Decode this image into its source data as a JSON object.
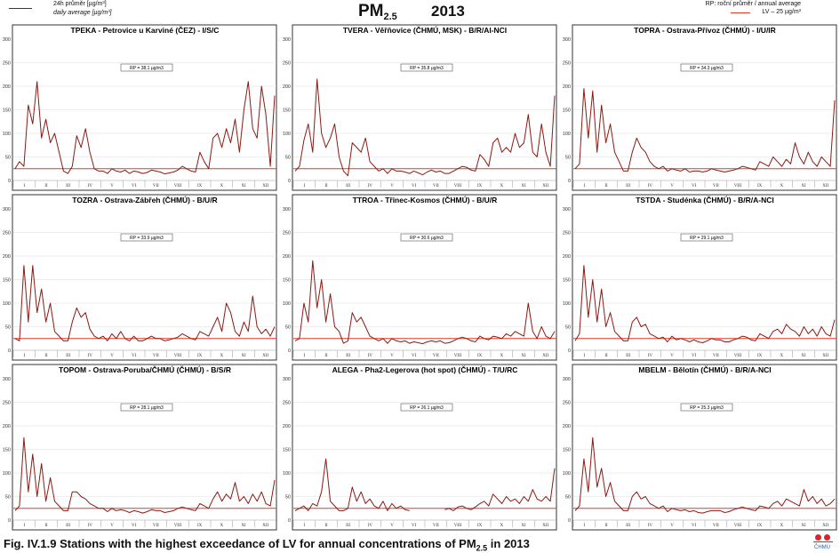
{
  "legend_left": {
    "line1": "24h průměr [µg/m³]",
    "line2": "daily average [µg/m³]",
    "line_color": "#8b1a12"
  },
  "main_title": {
    "pm": "PM",
    "pm_sub": "2.5",
    "year": "2013"
  },
  "legend_right": {
    "line1": "RP: roční průměr / annual average",
    "line2": "LV – 25 µg/m³",
    "lv_color": "#e03a2a"
  },
  "caption": {
    "prefix": "Fig. IV.1.9  Stations with the highest exceedance of LV for annual concentrations of PM",
    "sub": "2.5",
    "suffix": " in 2013"
  },
  "logo": {
    "text": "ČHMÚ"
  },
  "chart_data": [
    {
      "type": "line",
      "title": "TPEKA - Petrovice u Karviné (ČEZ) - I/S/C",
      "annotation": "RP = 38.1 µg/m3",
      "ylim": [
        0,
        300
      ],
      "yticks": [
        0,
        50,
        100,
        150,
        200,
        250,
        300
      ],
      "xticks": [
        "I",
        "II",
        "III",
        "IV",
        "V",
        "VI",
        "VII",
        "VIII",
        "IX",
        "X",
        "XI",
        "XII"
      ],
      "limit_value": 25,
      "series": [
        {
          "values": [
            25,
            40,
            30,
            160,
            120,
            210,
            90,
            130,
            80,
            100,
            60,
            20,
            15,
            30,
            95,
            70,
            110,
            60,
            25,
            20,
            20,
            15,
            25,
            20,
            18,
            22,
            15,
            20,
            18,
            15,
            17,
            22,
            20,
            18,
            14,
            16,
            18,
            22,
            30,
            25,
            20,
            18,
            60,
            40,
            25,
            90,
            100,
            70,
            110,
            80,
            130,
            60,
            150,
            210,
            110,
            90,
            200,
            140,
            30,
            180
          ]
        }
      ]
    },
    {
      "type": "line",
      "title": "TVERA - Věřňovice (ČHMÚ, MSK) - B/R/AI-NCI",
      "annotation": "RP = 35.8 µg/m3",
      "ylim": [
        0,
        300
      ],
      "yticks": [
        0,
        50,
        100,
        150,
        200,
        250,
        300
      ],
      "xticks": [
        "I",
        "II",
        "III",
        "IV",
        "V",
        "VI",
        "VII",
        "VIII",
        "IX",
        "X",
        "XI",
        "XII"
      ],
      "limit_value": 25,
      "series": [
        {
          "values": [
            20,
            30,
            85,
            120,
            60,
            215,
            100,
            70,
            90,
            120,
            50,
            20,
            10,
            80,
            70,
            60,
            90,
            40,
            30,
            20,
            25,
            15,
            25,
            20,
            20,
            18,
            15,
            20,
            16,
            12,
            18,
            22,
            18,
            20,
            15,
            15,
            20,
            25,
            30,
            28,
            22,
            20,
            55,
            45,
            30,
            80,
            90,
            60,
            70,
            60,
            100,
            70,
            80,
            140,
            60,
            50,
            120,
            60,
            30,
            180
          ]
        }
      ]
    },
    {
      "type": "line",
      "title": "TOPRA - Ostrava-Přívoz (ČHMÚ) - I/U/IR",
      "annotation": "RP = 34.3 µg/m3",
      "ylim": [
        0,
        300
      ],
      "yticks": [
        0,
        50,
        100,
        150,
        200,
        250,
        300
      ],
      "xticks": [
        "I",
        "II",
        "III",
        "IV",
        "V",
        "VI",
        "VII",
        "VIII",
        "IX",
        "X",
        "XI",
        "XII"
      ],
      "limit_value": 25,
      "series": [
        {
          "values": [
            25,
            35,
            195,
            90,
            190,
            60,
            160,
            80,
            120,
            60,
            40,
            20,
            20,
            60,
            90,
            70,
            60,
            40,
            30,
            25,
            30,
            20,
            25,
            22,
            20,
            25,
            18,
            20,
            20,
            18,
            20,
            25,
            22,
            20,
            18,
            20,
            22,
            25,
            30,
            28,
            25,
            22,
            40,
            35,
            30,
            50,
            40,
            30,
            45,
            35,
            80,
            50,
            35,
            60,
            40,
            30,
            50,
            40,
            30,
            170
          ]
        }
      ]
    },
    {
      "type": "line",
      "title": "TOZRA - Ostrava-Zábřeh (ČHMÚ) - B/U/R",
      "annotation": "RP = 33.9 µg/m3",
      "ylim": [
        0,
        300
      ],
      "yticks": [
        0,
        50,
        100,
        150,
        200,
        250,
        300
      ],
      "xticks": [
        "I",
        "II",
        "III",
        "IV",
        "V",
        "VI",
        "VII",
        "VIII",
        "IX",
        "X",
        "XI",
        "XII"
      ],
      "limit_value": 25,
      "series": [
        {
          "values": [
            25,
            20,
            180,
            60,
            180,
            80,
            130,
            60,
            100,
            40,
            30,
            20,
            20,
            60,
            90,
            70,
            80,
            45,
            30,
            25,
            30,
            20,
            35,
            25,
            40,
            25,
            20,
            30,
            20,
            20,
            25,
            30,
            25,
            25,
            20,
            22,
            25,
            28,
            35,
            30,
            25,
            22,
            40,
            35,
            30,
            50,
            70,
            40,
            100,
            80,
            40,
            30,
            60,
            40,
            115,
            50,
            35,
            45,
            30,
            50
          ]
        }
      ]
    },
    {
      "type": "line",
      "title": "TTROA - Třinec-Kosmos (ČHMÚ) - B/U/R",
      "annotation": "RP = 30.6 µg/m3",
      "ylim": [
        0,
        300
      ],
      "yticks": [
        0,
        50,
        100,
        150,
        200,
        250,
        300
      ],
      "xticks": [
        "I",
        "II",
        "III",
        "IV",
        "V",
        "VI",
        "VII",
        "VIII",
        "IX",
        "X",
        "XI",
        "XII"
      ],
      "limit_value": 25,
      "series": [
        {
          "values": [
            20,
            25,
            100,
            60,
            190,
            90,
            150,
            60,
            120,
            50,
            40,
            15,
            20,
            80,
            60,
            70,
            50,
            30,
            25,
            20,
            25,
            15,
            25,
            20,
            18,
            20,
            15,
            18,
            16,
            14,
            18,
            20,
            18,
            20,
            15,
            16,
            20,
            25,
            28,
            25,
            20,
            18,
            30,
            25,
            22,
            30,
            28,
            25,
            35,
            30,
            40,
            35,
            30,
            100,
            40,
            25,
            50,
            30,
            25,
            40
          ]
        }
      ]
    },
    {
      "type": "line",
      "title": "TSTDA - Studénka (ČHMÚ) - B/R/A-NCI",
      "annotation": "RP = 29.1 µg/m3",
      "ylim": [
        0,
        300
      ],
      "yticks": [
        0,
        50,
        100,
        150,
        200,
        250,
        300
      ],
      "xticks": [
        "I",
        "II",
        "III",
        "IV",
        "V",
        "VI",
        "VII",
        "VIII",
        "IX",
        "X",
        "XI",
        "XII"
      ],
      "limit_value": 25,
      "series": [
        {
          "values": [
            20,
            35,
            180,
            70,
            150,
            60,
            130,
            50,
            80,
            40,
            30,
            20,
            20,
            60,
            70,
            50,
            55,
            35,
            30,
            25,
            28,
            18,
            30,
            22,
            25,
            22,
            18,
            22,
            18,
            16,
            20,
            25,
            22,
            22,
            18,
            18,
            22,
            25,
            30,
            28,
            22,
            20,
            35,
            30,
            25,
            40,
            45,
            35,
            55,
            45,
            40,
            30,
            50,
            35,
            45,
            30,
            50,
            35,
            30,
            65
          ]
        }
      ]
    },
    {
      "type": "line",
      "title": "TOPOM - Ostrava-Poruba/ČHMÚ (ČHMÚ) - B/S/R",
      "annotation": "RP = 28.1 µg/m3",
      "ylim": [
        0,
        300
      ],
      "yticks": [
        0,
        50,
        100,
        150,
        200,
        250,
        300
      ],
      "xticks": [
        "I",
        "II",
        "III",
        "IV",
        "V",
        "VI",
        "VII",
        "VIII",
        "IX",
        "X",
        "XI",
        "XII"
      ],
      "limit_value": 25,
      "series": [
        {
          "values": [
            20,
            30,
            175,
            60,
            140,
            50,
            120,
            40,
            90,
            40,
            30,
            20,
            20,
            60,
            60,
            50,
            45,
            35,
            30,
            25,
            25,
            18,
            25,
            20,
            22,
            20,
            16,
            20,
            18,
            15,
            18,
            22,
            20,
            20,
            16,
            18,
            20,
            25,
            28,
            25,
            22,
            20,
            35,
            30,
            25,
            45,
            60,
            40,
            55,
            45,
            80,
            40,
            50,
            35,
            55,
            40,
            60,
            35,
            30,
            85
          ]
        }
      ]
    },
    {
      "type": "line",
      "title": "ALEGA - Pha2-Legerova (hot spot) (ČHMÚ) - T/U/RC",
      "annotation": "RP = 26.1 µg/m3",
      "ylim": [
        0,
        300
      ],
      "yticks": [
        0,
        50,
        100,
        150,
        200,
        250,
        300
      ],
      "xticks": [
        "I",
        "II",
        "III",
        "IV",
        "V",
        "VI",
        "VII",
        "VIII",
        "IX",
        "X",
        "XI",
        "XII"
      ],
      "limit_value": 25,
      "series": [
        {
          "values": [
            20,
            25,
            30,
            20,
            35,
            30,
            60,
            130,
            40,
            30,
            20,
            20,
            25,
            70,
            40,
            60,
            35,
            45,
            30,
            25,
            40,
            20,
            35,
            25,
            30,
            22,
            20,
            null,
            null,
            25,
            null,
            null,
            null,
            null,
            22,
            25,
            20,
            28,
            30,
            25,
            22,
            28,
            35,
            40,
            30,
            55,
            45,
            35,
            50,
            40,
            45,
            35,
            50,
            40,
            65,
            45,
            40,
            50,
            40,
            110
          ]
        }
      ]
    },
    {
      "type": "line",
      "title": "MBELM - Bělotín (ČHMÚ) - B/R/A-NCI",
      "annotation": "RP = 25.3 µg/m3",
      "ylim": [
        0,
        300
      ],
      "yticks": [
        0,
        50,
        100,
        150,
        200,
        250,
        300
      ],
      "xticks": [
        "I",
        "II",
        "III",
        "IV",
        "V",
        "VI",
        "VII",
        "VIII",
        "IX",
        "X",
        "XI",
        "XII"
      ],
      "limit_value": 25,
      "series": [
        {
          "values": [
            20,
            30,
            130,
            60,
            175,
            70,
            110,
            50,
            80,
            40,
            30,
            20,
            20,
            50,
            60,
            45,
            50,
            35,
            30,
            25,
            30,
            18,
            25,
            22,
            20,
            22,
            18,
            20,
            16,
            15,
            18,
            20,
            20,
            20,
            16,
            18,
            22,
            25,
            28,
            25,
            22,
            20,
            30,
            28,
            25,
            35,
            40,
            30,
            45,
            40,
            35,
            30,
            65,
            40,
            50,
            35,
            45,
            30,
            35,
            45
          ]
        }
      ]
    }
  ]
}
